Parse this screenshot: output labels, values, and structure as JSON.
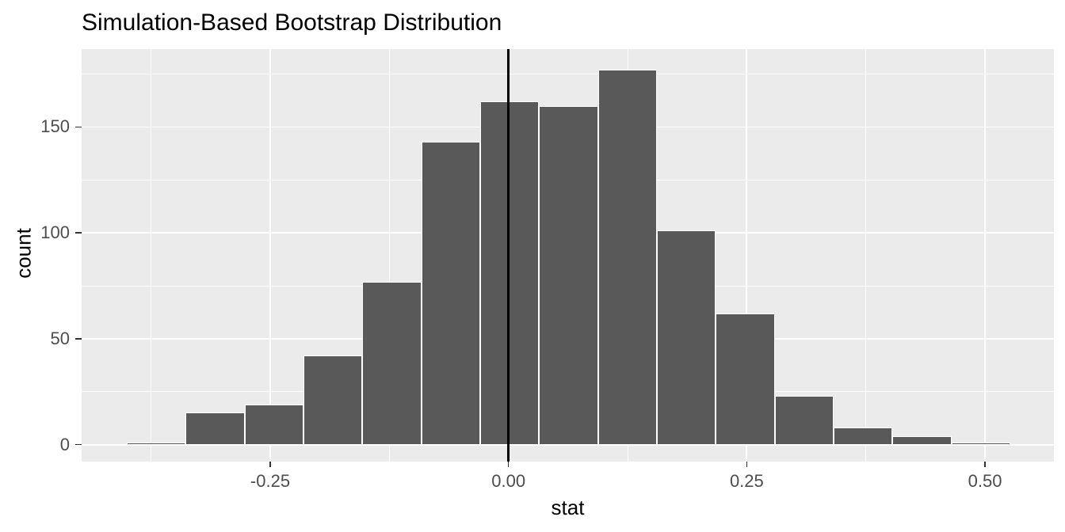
{
  "chart_data": {
    "type": "bar",
    "subtype": "histogram",
    "title": "Simulation-Based Bootstrap Distribution",
    "xlabel": "stat",
    "ylabel": "count",
    "bin_edges": [
      -0.4005,
      -0.3387,
      -0.2769,
      -0.2151,
      -0.1533,
      -0.0915,
      -0.0297,
      0.0321,
      0.0939,
      0.1557,
      0.2175,
      0.2793,
      0.3411,
      0.4029,
      0.4647,
      0.5265
    ],
    "counts": [
      1,
      15,
      19,
      42,
      77,
      143,
      162,
      160,
      177,
      101,
      62,
      23,
      8,
      4,
      1
    ],
    "vline_x": 0,
    "xlim": [
      -0.4479,
      0.5723
    ],
    "ylim": [
      -8.0,
      186.8
    ],
    "x_ticks": [
      {
        "value": -0.25,
        "label": "-0.25"
      },
      {
        "value": 0.0,
        "label": "0.00"
      },
      {
        "value": 0.25,
        "label": "0.25"
      },
      {
        "value": 0.5,
        "label": "0.50"
      }
    ],
    "y_ticks": [
      {
        "value": 0,
        "label": "0"
      },
      {
        "value": 50,
        "label": "50"
      },
      {
        "value": 100,
        "label": "100"
      },
      {
        "value": 150,
        "label": "150"
      }
    ],
    "x_minor": [
      -0.375,
      -0.125,
      0.125,
      0.375
    ],
    "y_minor": [
      25,
      75,
      125,
      175
    ],
    "grid": true,
    "legend_position": "none",
    "theme": {
      "panel_bg": "#EBEBEB",
      "grid_color": "#FFFFFF",
      "bar_fill": "#595959",
      "bar_border": "#FFFFFF",
      "vline_color": "#000000",
      "tick_label_color": "#4D4D4D",
      "title_color": "#000000",
      "axis_title_color": "#000000",
      "tick_mark_color": "#333333"
    }
  }
}
